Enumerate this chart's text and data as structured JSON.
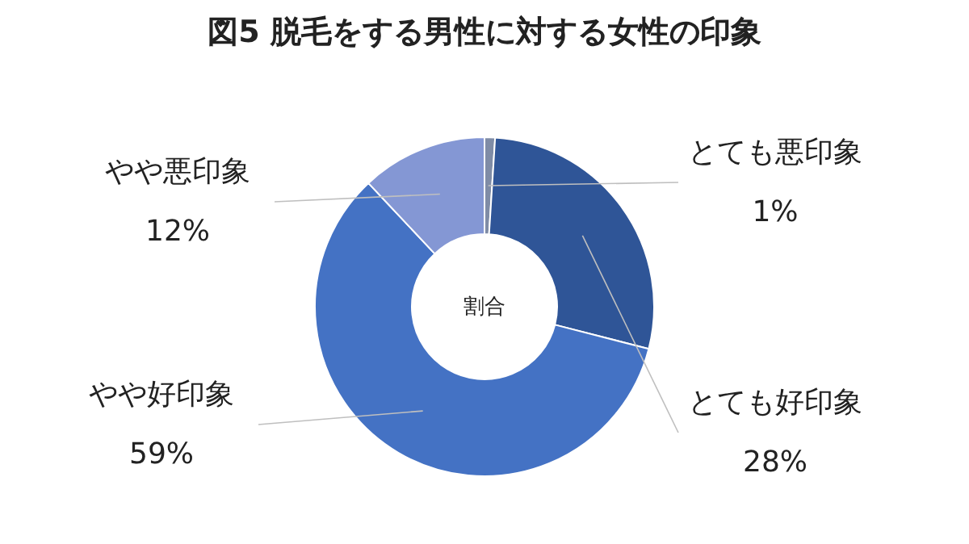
{
  "chart_data": {
    "type": "donut",
    "title": "図5 脱毛をする男性に対する女性の印象",
    "categories": [
      "とても悪印象",
      "とても好印象",
      "やや好印象",
      "やや悪印象"
    ],
    "values": [
      1,
      28,
      59,
      12
    ],
    "colors": [
      "#7f8ca6",
      "#2f5597",
      "#4472c4",
      "#8497d4"
    ],
    "value_labels": [
      "1%",
      "28%",
      "59%",
      "12%"
    ],
    "annotations": [
      "割合"
    ],
    "legend": false
  }
}
